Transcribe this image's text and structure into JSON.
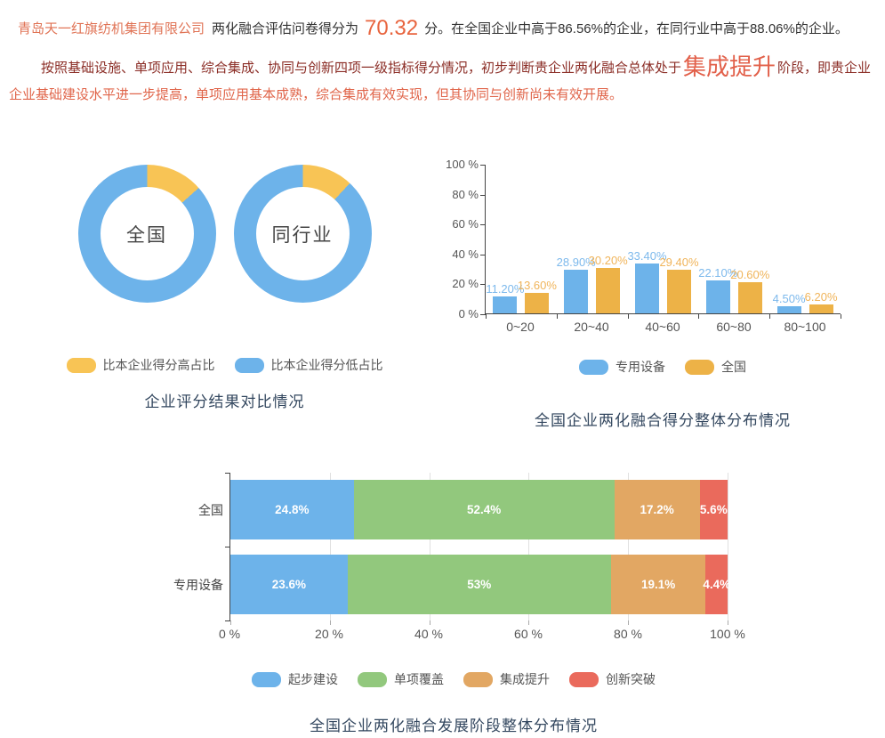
{
  "header": {
    "company": "青岛天一红旗纺机集团有限公司",
    "line1_mid": "两化融合评估问卷得分为",
    "score": "70.32",
    "line1_tail": "分。在全国企业中高于86.56%的企业，在同行业中高于88.06%的企业。",
    "para2_part1": "按照基础设施、单项应用、综合集成、协同与创新四项一级指标得分情况，初步判断贵企业两化融合总体处于",
    "para2_stage": "集成提升",
    "para2_part2": "阶段，即贵企业",
    "para2_part3": "企业基础建设水平进一步提高，单项应用基本成熟，综合集成有效实现，但其协同与创新尚未有效开展。"
  },
  "colors": {
    "blue": "#6db3ea",
    "yellow": "#f8c455",
    "bar_orange": "#edb247",
    "green": "#92c87d",
    "tan": "#e2a763",
    "red": "#ea6a5c",
    "blue_label": "#7db9ec",
    "orange_label": "#f0b45a"
  },
  "donut_section": {
    "legend": [
      {
        "label": "比本企业得分高占比",
        "color": "#f8c455"
      },
      {
        "label": "比本企业得分低占比",
        "color": "#6db3ea"
      }
    ],
    "caption": "企业评分结果对比情况"
  },
  "bar_section": {
    "legend": [
      {
        "label": "专用设备",
        "color": "#6db3ea"
      },
      {
        "label": "全国",
        "color": "#edb247"
      }
    ],
    "caption": "全国企业两化融合得分整体分布情况"
  },
  "stack_section": {
    "legend": [
      {
        "label": "起步建设",
        "color": "#6db3ea"
      },
      {
        "label": "单项覆盖",
        "color": "#92c87d"
      },
      {
        "label": "集成提升",
        "color": "#e2a763"
      },
      {
        "label": "创新突破",
        "color": "#ea6a5c"
      }
    ],
    "caption": "全国企业两化融合发展阶段整体分布情况"
  },
  "chart_data": [
    {
      "type": "pie",
      "title": "企业评分结果对比情况",
      "legend_position": "bottom",
      "donuts": [
        {
          "center_label": "全国",
          "slices": [
            {
              "name": "比本企业得分高占比",
              "value": 13.44,
              "color_key": "yellow"
            },
            {
              "name": "比本企业得分低占比",
              "value": 86.56,
              "color_key": "blue"
            }
          ]
        },
        {
          "center_label": "同行业",
          "slices": [
            {
              "name": "比本企业得分高占比",
              "value": 11.94,
              "color_key": "yellow"
            },
            {
              "name": "比本企业得分低占比",
              "value": 88.06,
              "color_key": "blue"
            }
          ]
        }
      ]
    },
    {
      "type": "bar",
      "title": "全国企业两化融合得分整体分布情况",
      "categories": [
        "0~20",
        "20~40",
        "40~60",
        "60~80",
        "80~100"
      ],
      "series": [
        {
          "name": "专用设备",
          "color_key": "blue",
          "label_color_key": "blue_label",
          "values": [
            11.2,
            28.9,
            33.4,
            22.1,
            4.5
          ],
          "labels": [
            "11.20%",
            "28.90%",
            "33.40%",
            "22.10%",
            "4.50%"
          ]
        },
        {
          "name": "全国",
          "color_key": "bar_orange",
          "label_color_key": "orange_label",
          "values": [
            13.6,
            30.2,
            29.4,
            20.6,
            6.2
          ],
          "labels": [
            "13.60%",
            "30.20%",
            "29.40%",
            "20.60%",
            "6.20%"
          ]
        }
      ],
      "ylim": [
        0,
        100
      ],
      "yticks": [
        {
          "v": 0,
          "label": "0 %"
        },
        {
          "v": 20,
          "label": "20 %"
        },
        {
          "v": 40,
          "label": "40 %"
        },
        {
          "v": 60,
          "label": "60 %"
        },
        {
          "v": 80,
          "label": "80 %"
        },
        {
          "v": 100,
          "label": "100 %"
        }
      ],
      "grid": false,
      "legend_position": "bottom"
    },
    {
      "type": "bar",
      "orientation": "horizontal-stacked",
      "title": "全国企业两化融合发展阶段整体分布情况",
      "categories": [
        "全国",
        "专用设备"
      ],
      "series": [
        {
          "name": "起步建设",
          "color_key": "blue",
          "values": [
            24.8,
            23.6
          ],
          "labels": [
            "24.8%",
            "23.6%"
          ]
        },
        {
          "name": "单项覆盖",
          "color_key": "green",
          "values": [
            52.4,
            53
          ],
          "labels": [
            "52.4%",
            "53%"
          ]
        },
        {
          "name": "集成提升",
          "color_key": "tan",
          "values": [
            17.2,
            19.1
          ],
          "labels": [
            "17.2%",
            "19.1%"
          ]
        },
        {
          "name": "创新突破",
          "color_key": "red",
          "values": [
            5.6,
            4.4
          ],
          "labels": [
            "5.6%",
            "4.4%"
          ]
        }
      ],
      "xlim": [
        0,
        100
      ],
      "xticks": [
        {
          "v": 0,
          "label": "0 %"
        },
        {
          "v": 20,
          "label": "20 %"
        },
        {
          "v": 40,
          "label": "40 %"
        },
        {
          "v": 60,
          "label": "60 %"
        },
        {
          "v": 80,
          "label": "80 %"
        },
        {
          "v": 100,
          "label": "100 %"
        }
      ],
      "grid": true,
      "legend_position": "bottom"
    }
  ]
}
